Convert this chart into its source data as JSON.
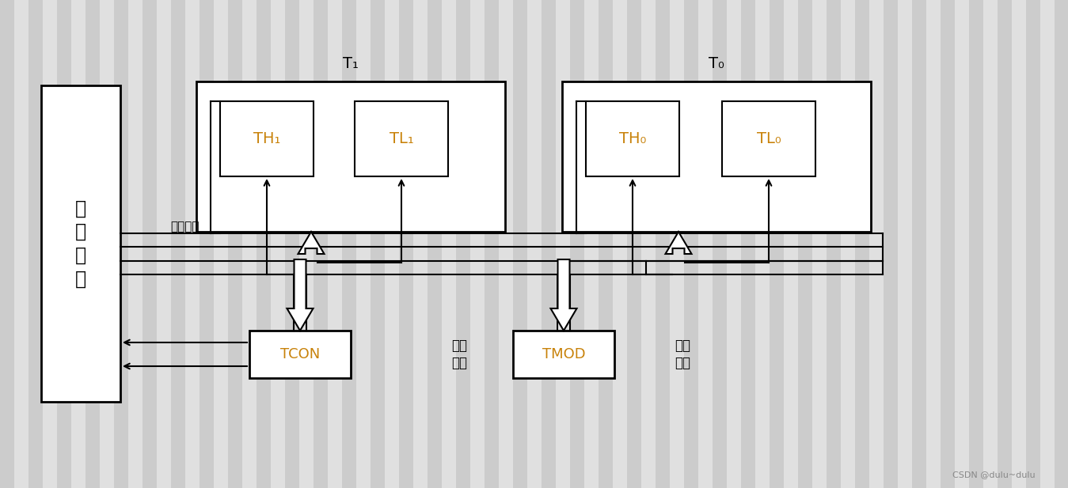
{
  "bg_color": "#e0e0e0",
  "bg_stripe_color": "#cccccc",
  "box_color": "white",
  "line_color": "black",
  "text_orange": "#c8820a",
  "text_black": "black",
  "title_T1": "T₁",
  "title_T0": "T₀",
  "label_TH1": "TH₁",
  "label_TL1": "TL₁",
  "label_TH0": "TH₀",
  "label_TL0": "TL₀",
  "label_TCON": "TCON",
  "label_TMOD": "TMOD",
  "label_cpu": "微\n处\n理\n器",
  "label_bus": "内部总线",
  "label_gongzuo1": "工作\n方式",
  "label_gongzuo2": "工作\n方式",
  "watermark": "CSDN @dulu~dulu",
  "fig_w": 13.49,
  "fig_h": 6.17,
  "dpi": 100
}
